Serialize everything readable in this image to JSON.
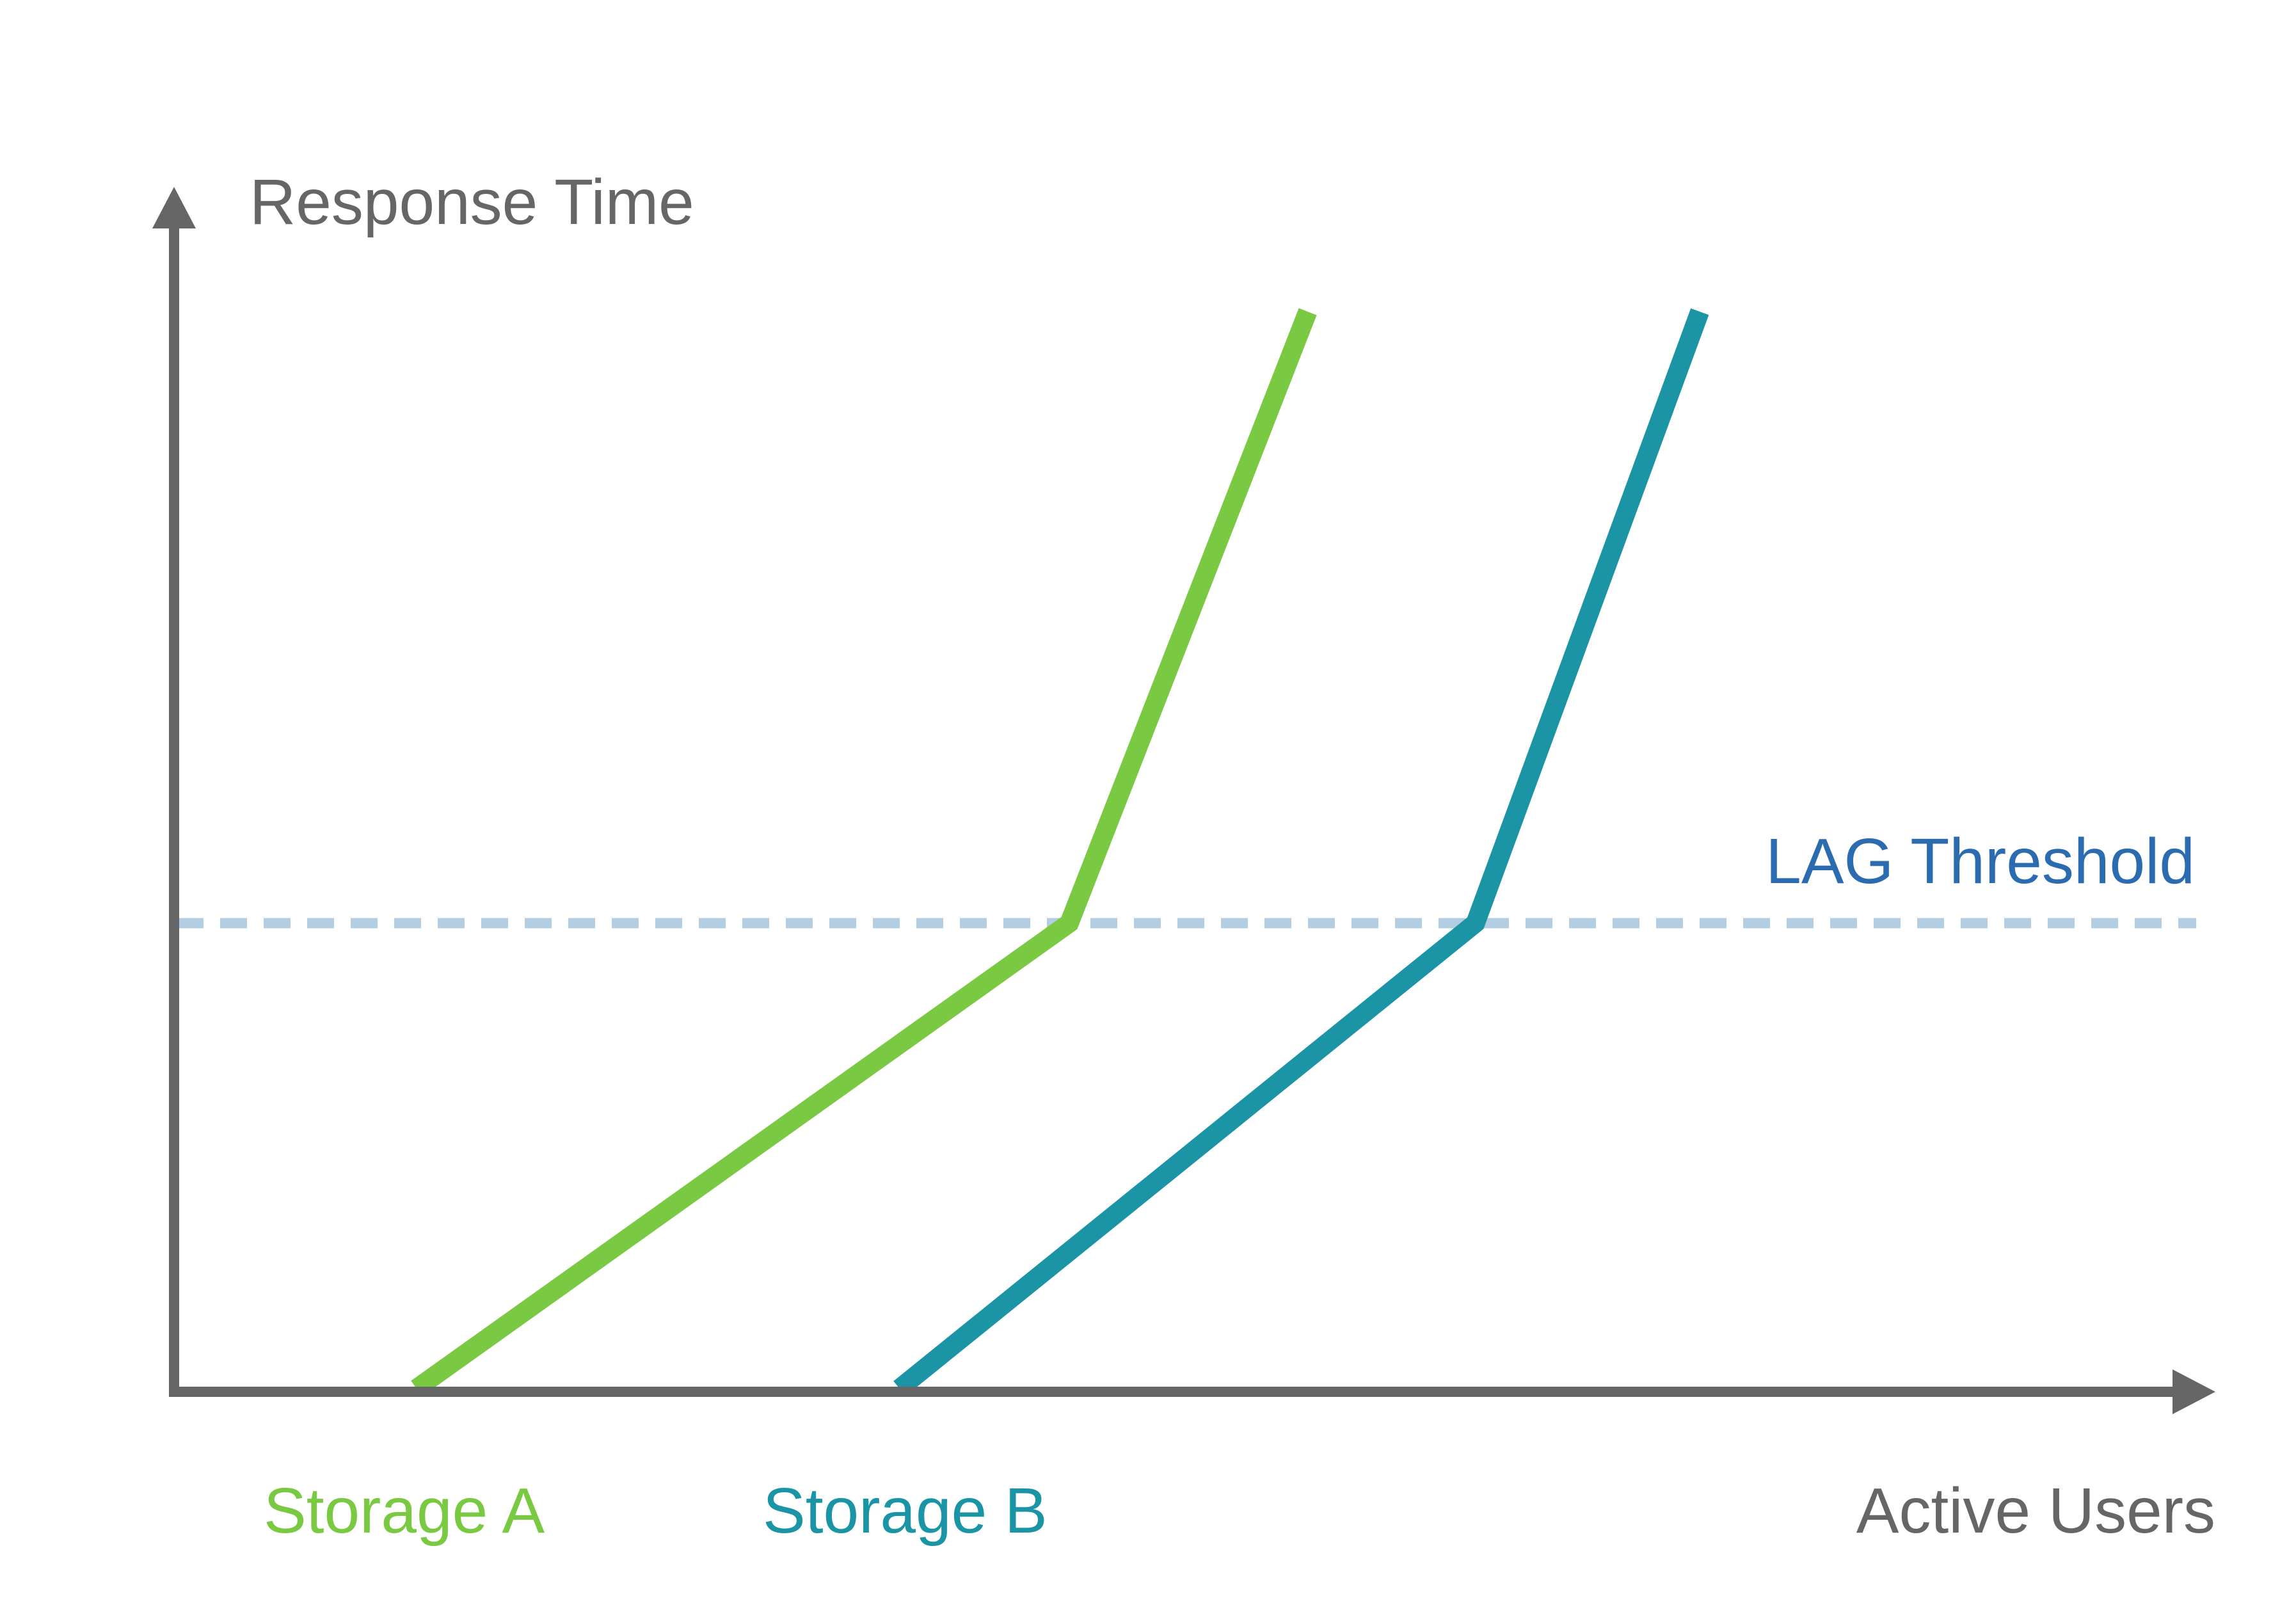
{
  "chart_data": {
    "type": "line",
    "title": "",
    "xlabel": "Active Users",
    "ylabel": "Response Time",
    "grid": false,
    "axis_ticks": false,
    "xlim": [
      0,
      100
    ],
    "ylim": [
      0,
      100
    ],
    "colors": {
      "axis": "#666666",
      "threshold": "#b3cde3",
      "threshold_label": "#2b6cb0",
      "storage_a": "#7ac943",
      "storage_b": "#1b95a5"
    },
    "threshold": {
      "label": "LAG Threshold",
      "y": 38.9
    },
    "series": [
      {
        "name": "Storage A",
        "color": "#7ac943",
        "points": [
          {
            "x": 12.0,
            "y": 0.0
          },
          {
            "x": 44.3,
            "y": 38.9
          },
          {
            "x": 56.1,
            "y": 90.0
          }
        ]
      },
      {
        "name": "Storage B",
        "color": "#1b95a5",
        "points": [
          {
            "x": 35.9,
            "y": 0.0
          },
          {
            "x": 64.4,
            "y": 38.9
          },
          {
            "x": 75.5,
            "y": 90.0
          }
        ]
      }
    ]
  }
}
